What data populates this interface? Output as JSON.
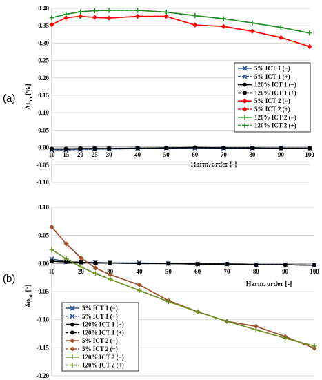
{
  "chart_data": [
    {
      "type": "line",
      "panel_label": "(a)",
      "xlabel": "Harm. order [-]",
      "ylabel": "ΔI",
      "ylabel_sub": "hh",
      "ylabel_unit": " [%]",
      "xlim": [
        10,
        100
      ],
      "ylim": [
        -0.1,
        0.4
      ],
      "xticks": [
        "10",
        "15",
        "20",
        "25",
        "30",
        "40",
        "50",
        "60",
        "70",
        "80",
        "90",
        "100"
      ],
      "yticks": [
        "0.40",
        "0.35",
        "0.30",
        "0.25",
        "0.20",
        "0.15",
        "0.10",
        "0.05",
        "0.00",
        "-0.05",
        "-0.10"
      ],
      "legend_position": "center-right",
      "series": [
        {
          "name": "5% ICT 1 (−)",
          "color": "#2f5597",
          "marker": "x",
          "dash": false,
          "x": [
            10,
            15,
            20,
            25,
            30,
            40,
            50,
            60,
            70,
            80,
            90,
            100
          ],
          "y": [
            -0.006,
            -0.006,
            -0.005,
            -0.004,
            -0.004,
            -0.003,
            -0.002,
            -0.002,
            -0.002,
            -0.002,
            -0.002,
            -0.002
          ]
        },
        {
          "name": "5% ICT 1 (+)",
          "color": "#2f5597",
          "marker": "x",
          "dash": true,
          "x": [
            10,
            15,
            20,
            25,
            30,
            40,
            50,
            60,
            70,
            80,
            90,
            100
          ],
          "y": [
            -0.007,
            -0.007,
            -0.006,
            -0.005,
            -0.004,
            -0.003,
            -0.002,
            -0.002,
            -0.002,
            -0.002,
            -0.002,
            -0.002
          ]
        },
        {
          "name": "120% ICT 1 (−)",
          "color": "#000000",
          "marker": "circle",
          "dash": false,
          "x": [
            10,
            15,
            20,
            25,
            30,
            40,
            50,
            60,
            70,
            80,
            90,
            100
          ],
          "y": [
            -0.004,
            -0.004,
            -0.003,
            -0.003,
            -0.003,
            -0.002,
            -0.001,
            0.0,
            -0.001,
            -0.001,
            -0.002,
            -0.002
          ]
        },
        {
          "name": "120% ICT 1 (+)",
          "color": "#000000",
          "marker": "circle",
          "dash": true,
          "x": [
            10,
            15,
            20,
            25,
            30,
            40,
            50,
            60,
            70,
            80,
            90,
            100
          ],
          "y": [
            -0.004,
            -0.004,
            -0.003,
            -0.003,
            -0.003,
            -0.002,
            -0.001,
            0.0,
            -0.001,
            -0.001,
            -0.002,
            -0.002
          ]
        },
        {
          "name": "5% ICT 2 (−)",
          "color": "#ff0000",
          "marker": "diamond",
          "dash": false,
          "x": [
            10,
            15,
            20,
            25,
            30,
            40,
            50,
            60,
            70,
            80,
            90,
            100
          ],
          "y": [
            0.353,
            0.373,
            0.377,
            0.374,
            0.372,
            0.377,
            0.377,
            0.352,
            0.348,
            0.334,
            0.316,
            0.29
          ]
        },
        {
          "name": "5% ICT 2 (+)",
          "color": "#ff0000",
          "marker": "diamond",
          "dash": true,
          "x": [
            10,
            15,
            20,
            25,
            30,
            40,
            50,
            60,
            70,
            80,
            90,
            100
          ],
          "y": [
            0.353,
            0.373,
            0.377,
            0.374,
            0.372,
            0.377,
            0.377,
            0.352,
            0.348,
            0.334,
            0.316,
            0.29
          ]
        },
        {
          "name": "120% ICT 2 (−)",
          "color": "#228b22",
          "marker": "plus",
          "dash": false,
          "x": [
            10,
            15,
            20,
            25,
            30,
            40,
            50,
            60,
            70,
            80,
            90,
            100
          ],
          "y": [
            0.373,
            0.383,
            0.39,
            0.393,
            0.394,
            0.394,
            0.389,
            0.379,
            0.37,
            0.358,
            0.345,
            0.329
          ]
        },
        {
          "name": "120% ICT 2 (+)",
          "color": "#228b22",
          "marker": "plus",
          "dash": true,
          "x": [
            10,
            15,
            20,
            25,
            30,
            40,
            50,
            60,
            70,
            80,
            90,
            100
          ],
          "y": [
            0.373,
            0.383,
            0.39,
            0.393,
            0.394,
            0.394,
            0.389,
            0.379,
            0.37,
            0.358,
            0.345,
            0.329
          ]
        }
      ]
    },
    {
      "type": "line",
      "panel_label": "(b)",
      "xlabel": "Harm. order [-]",
      "ylabel": "δφ",
      "ylabel_sub": "hh",
      "ylabel_unit": " [°]",
      "xlim": [
        10,
        100
      ],
      "ylim": [
        -0.2,
        0.1
      ],
      "xticks": [
        "10",
        "20",
        "30",
        "40",
        "50",
        "60",
        "70",
        "80",
        "90",
        "100"
      ],
      "yticks": [
        "0.10",
        "0.05",
        "0.00",
        "-0.05",
        "-0.10",
        "-0.15",
        "-0.20"
      ],
      "legend_position": "bottom-left",
      "series": [
        {
          "name": "5% ICT 1 (−)",
          "color": "#2f5597",
          "marker": "x",
          "dash": false,
          "x": [
            10,
            15,
            20,
            25,
            30,
            40,
            50,
            60,
            70,
            80,
            90,
            100
          ],
          "y": [
            0.008,
            0.003,
            0.002,
            0.002,
            0.001,
            0.001,
            0.0,
            -0.001,
            -0.001,
            -0.002,
            -0.002,
            -0.003
          ]
        },
        {
          "name": "5% ICT 1 (+)",
          "color": "#2f5597",
          "marker": "x",
          "dash": true,
          "x": [
            10,
            15,
            20,
            25,
            30,
            40,
            50,
            60,
            70,
            80,
            90,
            100
          ],
          "y": [
            0.008,
            0.003,
            0.002,
            0.002,
            0.001,
            0.001,
            0.0,
            -0.001,
            -0.001,
            -0.002,
            -0.002,
            -0.003
          ]
        },
        {
          "name": "120% ICT 1 (−)",
          "color": "#000000",
          "marker": "circle",
          "dash": false,
          "x": [
            10,
            15,
            20,
            25,
            30,
            40,
            50,
            60,
            70,
            80,
            90,
            100
          ],
          "y": [
            0.004,
            0.003,
            0.002,
            0.001,
            0.001,
            0.0,
            0.0,
            -0.001,
            -0.001,
            -0.002,
            -0.002,
            -0.003
          ]
        },
        {
          "name": "120% ICT 1 (+)",
          "color": "#000000",
          "marker": "circle",
          "dash": true,
          "x": [
            10,
            15,
            20,
            25,
            30,
            40,
            50,
            60,
            70,
            80,
            90,
            100
          ],
          "y": [
            0.004,
            0.003,
            0.002,
            0.001,
            0.001,
            0.0,
            0.0,
            -0.001,
            -0.001,
            -0.002,
            -0.002,
            -0.003
          ]
        },
        {
          "name": "5% ICT 2 (−)",
          "color": "#a0522d",
          "marker": "diamond",
          "dash": false,
          "x": [
            10,
            15,
            20,
            25,
            30,
            40,
            50,
            60,
            70,
            80,
            90,
            100
          ],
          "y": [
            0.065,
            0.035,
            0.01,
            -0.008,
            -0.02,
            -0.038,
            -0.066,
            -0.086,
            -0.103,
            -0.112,
            -0.13,
            -0.151
          ]
        },
        {
          "name": "5% ICT 2 (+)",
          "color": "#a0522d",
          "marker": "diamond",
          "dash": true,
          "x": [
            10,
            15,
            20,
            25,
            30,
            40,
            50,
            60,
            70,
            80,
            90,
            100
          ],
          "y": [
            0.065,
            0.035,
            0.01,
            -0.008,
            -0.02,
            -0.038,
            -0.066,
            -0.086,
            -0.103,
            -0.112,
            -0.13,
            -0.151
          ]
        },
        {
          "name": "120% ICT 2 (−)",
          "color": "#6b8e23",
          "marker": "plus",
          "dash": false,
          "x": [
            10,
            15,
            20,
            25,
            30,
            40,
            50,
            60,
            70,
            80,
            90,
            100
          ],
          "y": [
            0.025,
            0.008,
            -0.006,
            -0.018,
            -0.028,
            -0.048,
            -0.068,
            -0.086,
            -0.103,
            -0.118,
            -0.133,
            -0.147
          ]
        },
        {
          "name": "120% ICT 2 (+)",
          "color": "#6b8e23",
          "marker": "plus",
          "dash": true,
          "x": [
            10,
            15,
            20,
            25,
            30,
            40,
            50,
            60,
            70,
            80,
            90,
            100
          ],
          "y": [
            0.025,
            0.008,
            -0.006,
            -0.018,
            -0.028,
            -0.048,
            -0.068,
            -0.086,
            -0.103,
            -0.118,
            -0.133,
            -0.147
          ]
        }
      ]
    }
  ]
}
